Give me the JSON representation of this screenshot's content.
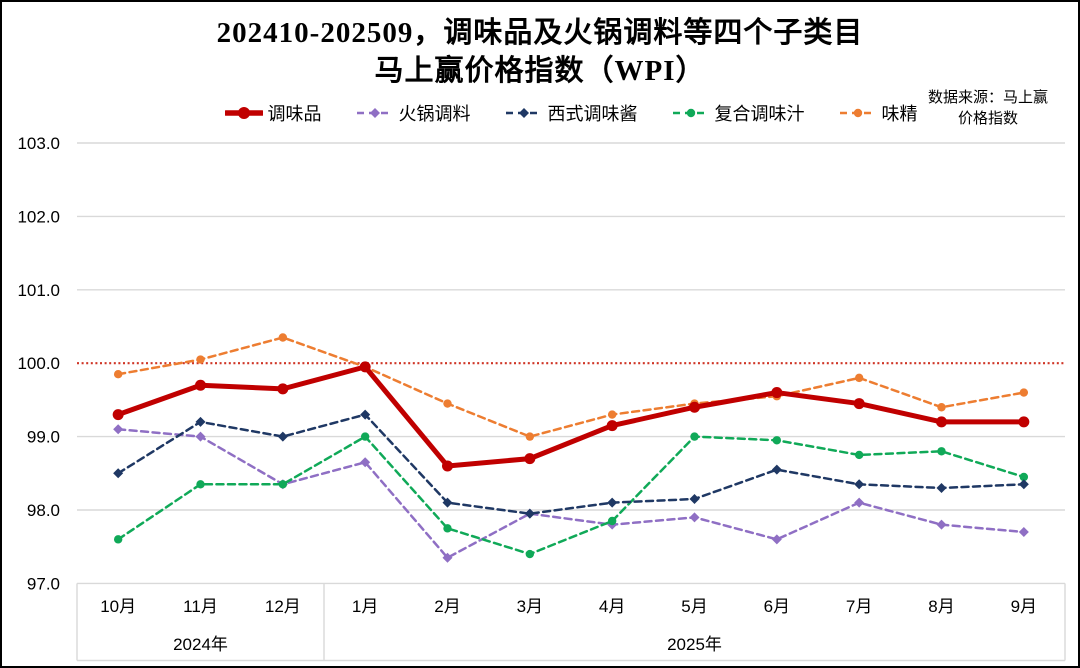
{
  "chart_data": {
    "type": "line",
    "title_line1": "202410-202509，调味品及火锅调料等四个子类目",
    "title_line2": "马上赢价格指数（WPI）",
    "source_line1": "数据来源：马上赢",
    "source_line2": "价格指数",
    "categories": [
      "10月",
      "11月",
      "12月",
      "1月",
      "2月",
      "3月",
      "4月",
      "5月",
      "6月",
      "7月",
      "8月",
      "9月"
    ],
    "year_groups": [
      {
        "label": "2024年",
        "start": 0,
        "end": 3
      },
      {
        "label": "2025年",
        "start": 3,
        "end": 12
      }
    ],
    "ylim": [
      97.0,
      103.0
    ],
    "yticks": [
      "103.0",
      "102.0",
      "101.0",
      "100.0",
      "99.0",
      "98.0",
      "97.0"
    ],
    "baseline": {
      "value": 100.0,
      "color": "#cf3526",
      "style": "dotted"
    },
    "grid_color": "#d9d9d9",
    "grid_on": true,
    "legend_position": "top",
    "series": [
      {
        "name": "调味品",
        "color": "#c00000",
        "style": "solid",
        "marker": "circle",
        "values": [
          99.3,
          99.7,
          99.65,
          99.95,
          98.6,
          98.7,
          99.15,
          99.4,
          99.6,
          99.45,
          99.2,
          99.2
        ]
      },
      {
        "name": "火锅调料",
        "color": "#8f6fc4",
        "style": "dashed",
        "marker": "diamond",
        "values": [
          99.1,
          99.0,
          98.35,
          98.65,
          97.35,
          97.95,
          97.8,
          97.9,
          97.6,
          98.1,
          97.8,
          97.7
        ]
      },
      {
        "name": "西式调味酱",
        "color": "#1f3864",
        "style": "dashed",
        "marker": "diamond",
        "values": [
          98.5,
          99.2,
          99.0,
          99.3,
          98.1,
          97.95,
          98.1,
          98.15,
          98.55,
          98.35,
          98.3,
          98.35
        ]
      },
      {
        "name": "复合调味汁",
        "color": "#10a958",
        "style": "dashed",
        "marker": "circle",
        "values": [
          97.6,
          98.35,
          98.35,
          99.0,
          97.75,
          97.4,
          97.85,
          99.0,
          98.95,
          98.75,
          98.8,
          98.45
        ]
      },
      {
        "name": "味精",
        "color": "#ed7d31",
        "style": "dashed",
        "marker": "circle",
        "values": [
          99.85,
          100.05,
          100.35,
          99.95,
          99.45,
          99.0,
          99.3,
          99.45,
          99.55,
          99.8,
          99.4,
          99.6
        ]
      }
    ]
  }
}
